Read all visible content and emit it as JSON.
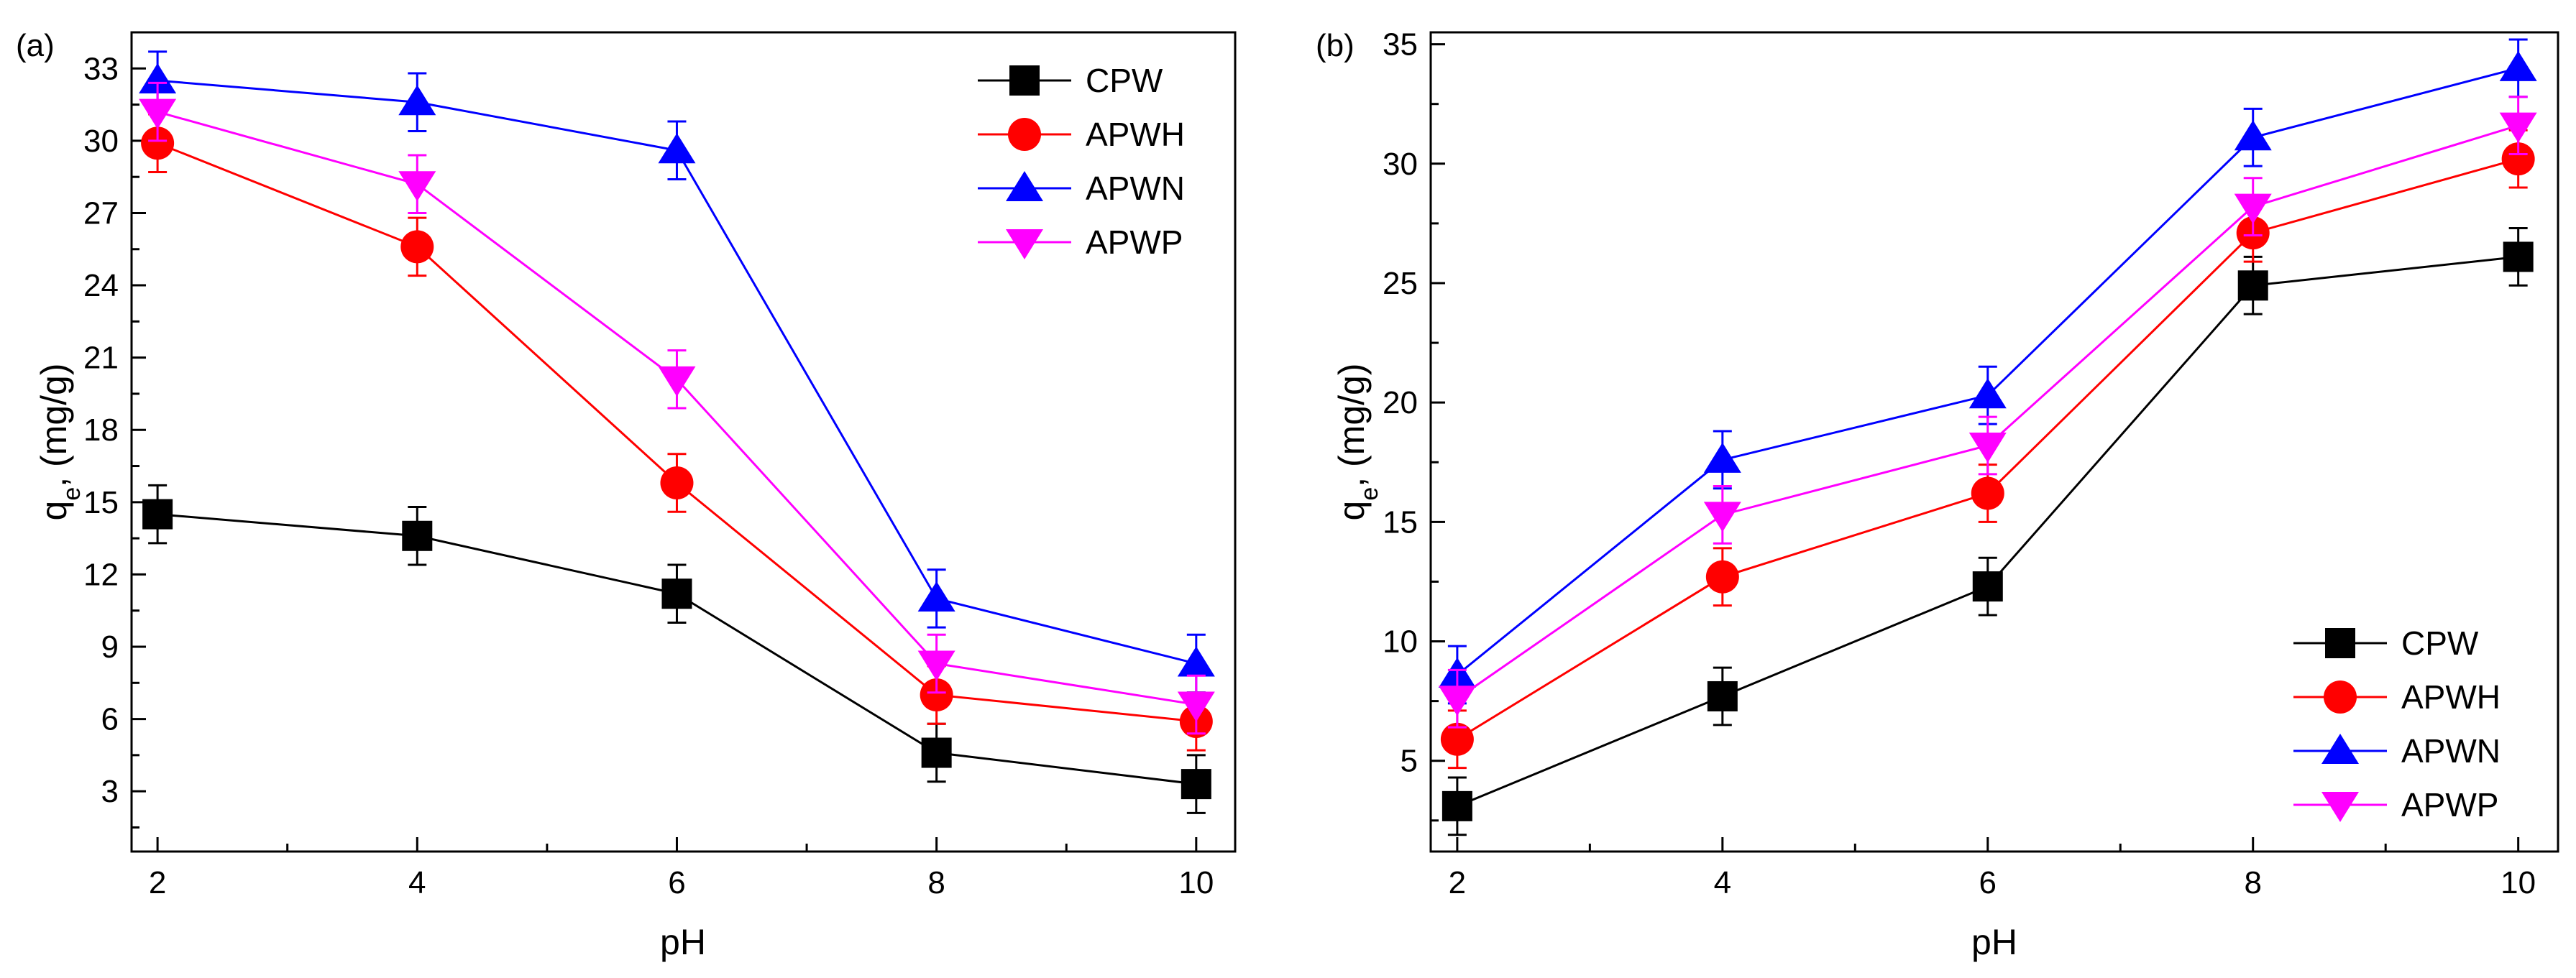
{
  "chart_data": [
    {
      "panel_label": "(a)",
      "type": "line",
      "xlabel": "pH",
      "ylabel_main": "q",
      "ylabel_sub": "e",
      "ylabel_rest": ", (mg/g)",
      "x": [
        2,
        4,
        6,
        8,
        10
      ],
      "x_ticks": [
        "2",
        "4",
        "6",
        "8",
        "10"
      ],
      "xlim": [
        1.8,
        10.3
      ],
      "ylim": [
        0.5,
        34.5
      ],
      "y_ticks": [
        3,
        6,
        9,
        12,
        15,
        18,
        21,
        24,
        27,
        30,
        33
      ],
      "y_tick_labels": [
        "3",
        "6",
        "9",
        "12",
        "15",
        "18",
        "21",
        "24",
        "27",
        "30",
        "33"
      ],
      "legend_position": "top-right",
      "series": [
        {
          "name": "CPW",
          "color": "#000000",
          "marker": "square",
          "values": [
            14.5,
            13.6,
            11.2,
            4.6,
            3.3
          ],
          "errors": [
            1.2,
            1.2,
            1.2,
            1.2,
            1.2
          ]
        },
        {
          "name": "APWH",
          "color": "#ff0000",
          "marker": "circle",
          "values": [
            29.9,
            25.6,
            15.8,
            7.0,
            5.9
          ],
          "errors": [
            1.2,
            1.2,
            1.2,
            1.2,
            1.2
          ]
        },
        {
          "name": "APWN",
          "color": "#0000ff",
          "marker": "triangle-up",
          "values": [
            32.5,
            31.6,
            29.6,
            11.0,
            8.3
          ],
          "errors": [
            1.2,
            1.2,
            1.2,
            1.2,
            1.2
          ]
        },
        {
          "name": "APWP",
          "color": "#ff00ff",
          "marker": "triangle-down",
          "values": [
            31.2,
            28.2,
            20.1,
            8.3,
            6.6
          ],
          "errors": [
            1.2,
            1.2,
            1.2,
            1.2,
            1.2
          ]
        }
      ]
    },
    {
      "panel_label": "(b)",
      "type": "line",
      "xlabel": "pH",
      "ylabel_main": "q",
      "ylabel_sub": "e",
      "ylabel_rest": ", (mg/g)",
      "x": [
        2,
        4,
        6,
        8,
        10
      ],
      "x_ticks": [
        "2",
        "4",
        "6",
        "8",
        "10"
      ],
      "xlim": [
        1.8,
        10.3
      ],
      "ylim": [
        1.2,
        35.5
      ],
      "y_ticks": [
        5,
        10,
        15,
        20,
        25,
        30,
        35
      ],
      "y_tick_labels": [
        "5",
        "10",
        "15",
        "20",
        "25",
        "30",
        "35"
      ],
      "legend_position": "bottom-right",
      "series": [
        {
          "name": "CPW",
          "color": "#000000",
          "marker": "square",
          "values": [
            3.1,
            7.7,
            12.3,
            24.9,
            26.1
          ],
          "errors": [
            1.2,
            1.2,
            1.2,
            1.2,
            1.2
          ]
        },
        {
          "name": "APWH",
          "color": "#ff0000",
          "marker": "circle",
          "values": [
            5.9,
            12.7,
            16.2,
            27.1,
            30.2
          ],
          "errors": [
            1.2,
            1.2,
            1.2,
            1.2,
            1.2
          ]
        },
        {
          "name": "APWN",
          "color": "#0000ff",
          "marker": "triangle-up",
          "values": [
            8.6,
            17.6,
            20.3,
            31.1,
            34.0
          ],
          "errors": [
            1.2,
            1.2,
            1.2,
            1.2,
            1.2
          ]
        },
        {
          "name": "APWP",
          "color": "#ff00ff",
          "marker": "triangle-down",
          "values": [
            7.6,
            15.3,
            18.2,
            28.2,
            31.6
          ],
          "errors": [
            1.2,
            1.2,
            1.2,
            1.2,
            1.2
          ]
        }
      ]
    }
  ]
}
